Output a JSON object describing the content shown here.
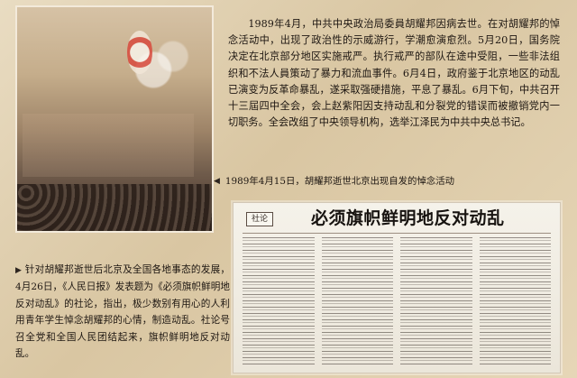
{
  "paragraph1": "1989年4月，中共中央政治局委員胡耀邦因病去世。在对胡耀邦的悼念活动中，出现了政治性的示威游行，学潮愈演愈烈。5月20日，国务院决定在北京部分地区实施戒严。执行戒严的部队在途中受阻，一些非法组织和不法人員策动了暴力和流血事件。6月4日，政府鉴于北京地区的动乱已演变为反革命暴乱，遂采取强硬措施，平息了暴乱。6月下旬，中共召开十三屆四中全会，会上赵紫阳因支持动乱和分裂党的错误而被撤销党内一切职务。全会改组了中央领导机构，选举江泽民为中共中央总书记。",
  "caption_marker": "◀",
  "caption": "1989年4月15日，胡耀邦逝世北京出现自发的悼念活动",
  "paragraph2_marker": "▶",
  "paragraph2": "针对胡耀邦逝世后北京及全国各地事态的发展，4月26日，《人民日报》发表题为《必须旗帜鲜明地反对动乱》的社论，指出，极少数别有用心的人利用青年学生悼念胡耀邦的心情，制造动乱。社论号召全党和全国人民团结起来，旗帜鲜明地反对动乱。",
  "newspaper": {
    "tag": "社论",
    "headline": "必须旗帜鲜明地反对动乱"
  }
}
